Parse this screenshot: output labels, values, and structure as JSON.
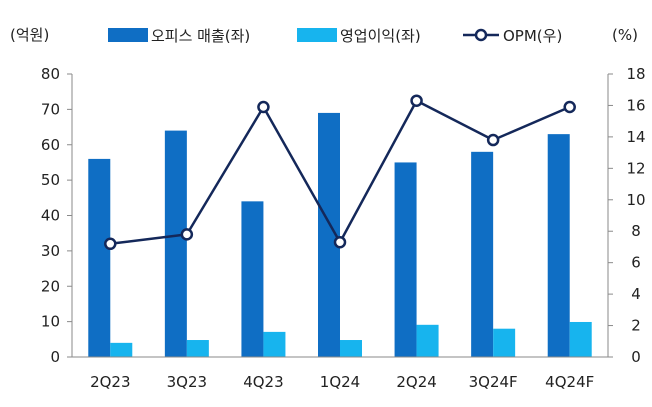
{
  "chart_data": {
    "type": "bar+line",
    "categories": [
      "2Q23",
      "3Q23",
      "4Q23",
      "1Q24",
      "2Q24",
      "3Q24F",
      "4Q24F"
    ],
    "left_axis": {
      "unit_label": "(억원)",
      "ylim": [
        0,
        80
      ],
      "ticks": [
        0,
        10,
        20,
        30,
        40,
        50,
        60,
        70,
        80
      ]
    },
    "right_axis": {
      "unit_label": "(%)",
      "ylim": [
        0,
        18
      ],
      "ticks": [
        0,
        2,
        4,
        6,
        8,
        10,
        12,
        14,
        16,
        18
      ]
    },
    "series": [
      {
        "name": "오피스 매출(좌)",
        "kind": "bar",
        "axis": "left",
        "color": "#0f6ec4",
        "values": [
          56,
          64,
          44,
          69,
          55,
          58,
          63
        ]
      },
      {
        "name": "영업이익(좌)",
        "kind": "bar",
        "axis": "left",
        "color": "#17b4ee",
        "values": [
          4,
          4.8,
          7.1,
          4.8,
          9.1,
          8,
          9.9
        ]
      },
      {
        "name": "OPM(우)",
        "kind": "line",
        "axis": "right",
        "color": "#14285a",
        "values": [
          7.2,
          7.8,
          15.9,
          7.3,
          16.3,
          13.8,
          15.9
        ]
      }
    ],
    "gridlines": false
  }
}
